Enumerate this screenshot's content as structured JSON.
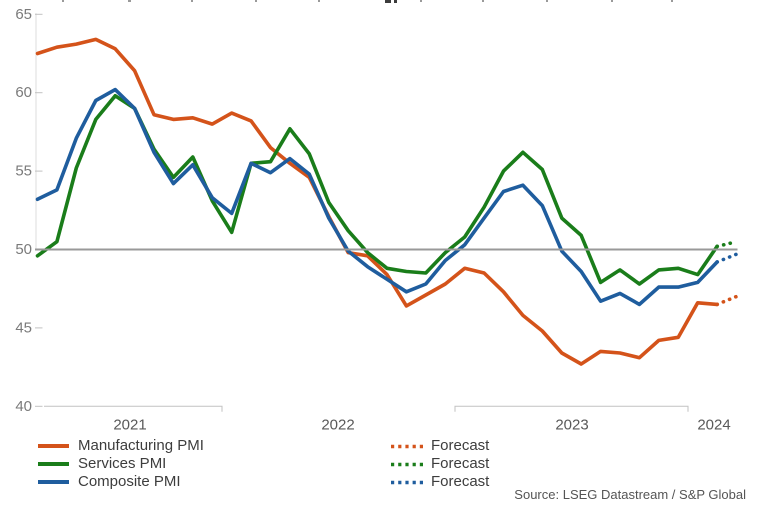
{
  "chart_data": {
    "type": "line",
    "months": [
      "Mar 2021",
      "Apr 2021",
      "May 2021",
      "Jun 2021",
      "Jul 2021",
      "Aug 2021",
      "Sep 2021",
      "Oct 2021",
      "Nov 2021",
      "Dec 2021",
      "Jan 2022",
      "Feb 2022",
      "Mar 2022",
      "Apr 2022",
      "May 2022",
      "Jun 2022",
      "Jul 2022",
      "Aug 2022",
      "Sep 2022",
      "Oct 2022",
      "Nov 2022",
      "Dec 2022",
      "Jan 2023",
      "Feb 2023",
      "Mar 2023",
      "Apr 2023",
      "May 2023",
      "Jun 2023",
      "Jul 2023",
      "Aug 2023",
      "Sep 2023",
      "Oct 2023",
      "Nov 2023",
      "Dec 2023",
      "Jan 2024",
      "Feb 2024"
    ],
    "forecast_month": "Mar 2024",
    "series": [
      {
        "name": "Manufacturing PMI",
        "color": "#d4531a",
        "values": [
          62.5,
          62.9,
          63.1,
          63.4,
          62.8,
          61.4,
          58.6,
          58.3,
          58.4,
          58.0,
          58.7,
          58.2,
          56.5,
          55.5,
          54.6,
          52.1,
          49.8,
          49.6,
          48.4,
          46.4,
          47.1,
          47.8,
          48.8,
          48.5,
          47.3,
          45.8,
          44.8,
          43.4,
          42.7,
          43.5,
          43.4,
          43.1,
          44.2,
          44.4,
          46.6,
          46.5
        ],
        "forecast": 47.0
      },
      {
        "name": "Services PMI",
        "color": "#1a7d1a",
        "values": [
          49.6,
          50.5,
          55.2,
          58.3,
          59.8,
          59.0,
          56.4,
          54.6,
          55.9,
          53.1,
          51.1,
          55.5,
          55.6,
          57.7,
          56.1,
          53.0,
          51.2,
          49.8,
          48.8,
          48.6,
          48.5,
          49.8,
          50.8,
          52.7,
          55.0,
          56.2,
          55.1,
          52.0,
          50.9,
          47.9,
          48.7,
          47.8,
          48.7,
          48.8,
          48.4,
          50.2
        ],
        "forecast": 50.5
      },
      {
        "name": "Composite PMI",
        "color": "#1f5d9e",
        "values": [
          53.2,
          53.8,
          57.1,
          59.5,
          60.2,
          59.0,
          56.2,
          54.2,
          55.4,
          53.3,
          52.3,
          55.5,
          54.9,
          55.8,
          54.8,
          52.0,
          49.9,
          48.9,
          48.1,
          47.3,
          47.8,
          49.3,
          50.3,
          52.0,
          53.7,
          54.1,
          52.8,
          49.9,
          48.6,
          46.7,
          47.2,
          46.5,
          47.6,
          47.6,
          47.9,
          49.2
        ],
        "forecast": 49.7
      }
    ],
    "yticks": [
      65,
      60,
      55,
      50,
      45,
      40
    ],
    "ylim": [
      40,
      65
    ],
    "reference_line": 50,
    "x_year_labels": [
      "2021",
      "2022",
      "2023",
      "2024"
    ],
    "grid": "off",
    "legend_position": "bottom"
  },
  "legend": {
    "forecast_label": "Forecast"
  },
  "source": "Source: LSEG Datastream / S&P Global",
  "clipped_title_marks": [
    [
      62,
      2,
      2,
      0
    ],
    [
      128,
      3,
      2,
      0
    ],
    [
      191,
      2,
      2,
      0
    ],
    [
      255,
      2,
      2,
      0
    ],
    [
      318,
      2,
      2,
      0
    ],
    [
      385,
      6,
      3,
      1
    ],
    [
      394,
      3,
      3,
      1
    ],
    [
      420,
      2,
      2,
      0
    ],
    [
      482,
      2,
      2,
      0
    ],
    [
      546,
      2,
      2,
      0
    ],
    [
      611,
      2,
      2,
      0
    ],
    [
      671,
      2,
      2,
      0
    ]
  ]
}
